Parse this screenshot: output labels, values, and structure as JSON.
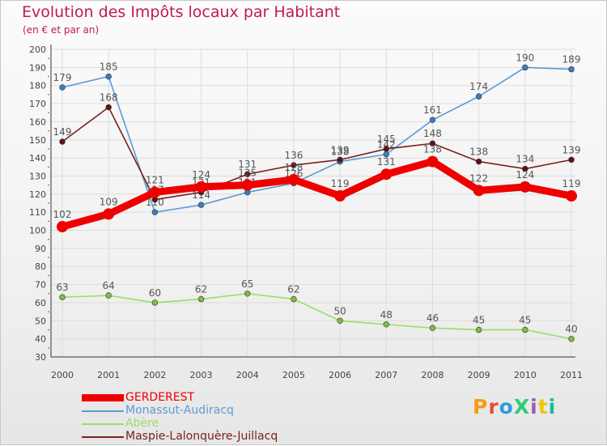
{
  "title": "Evolution des Impôts locaux par Habitant",
  "subtitle": "(en € et par an)",
  "logo": {
    "text": "ProXiti",
    "colors": [
      "#f39c12",
      "#e74c3c",
      "#3498db",
      "#2ecc71",
      "#9b59b6",
      "#f1c40f",
      "#1abc9c"
    ]
  },
  "chart_data": {
    "type": "line",
    "title": "Evolution des Impôts locaux par Habitant",
    "subtitle": "(en € et par an)",
    "xlabel": "",
    "ylabel": "",
    "x": [
      "2000",
      "2001",
      "2002",
      "2003",
      "2004",
      "2005",
      "2006",
      "2007",
      "2008",
      "2009",
      "2010",
      "2011"
    ],
    "ylim": [
      30,
      200
    ],
    "yticks": [
      30,
      40,
      50,
      60,
      70,
      80,
      90,
      100,
      110,
      120,
      130,
      140,
      150,
      160,
      170,
      180,
      190,
      200
    ],
    "grid": true,
    "legend_position": "bottom-left",
    "series": [
      {
        "name": "Monassut-Audiracq",
        "color": "#5b9bd5",
        "marker_color": "#3a7ec0",
        "emphasis": false,
        "values": [
          179,
          185,
          110,
          114,
          121,
          126,
          138,
          142,
          161,
          174,
          190,
          189
        ],
        "labels": [
          "179",
          "185",
          "110",
          "114",
          "121",
          "126",
          "138",
          "142",
          "161",
          "174",
          "190",
          "189"
        ]
      },
      {
        "name": "Maspie-Lalonquère-Juillacq",
        "color": "#7b2020",
        "marker_color": "#5c1414",
        "emphasis": false,
        "values": [
          149,
          168,
          117,
          121,
          131,
          136,
          139,
          145,
          148,
          138,
          134,
          139
        ],
        "labels": [
          "149",
          "168",
          "117",
          "121",
          "131",
          "136",
          "139",
          "145",
          "148",
          "138",
          "134",
          "139"
        ]
      },
      {
        "name": "Abère",
        "color": "#99dd66",
        "marker_color": "#7bc043",
        "emphasis": false,
        "values": [
          63,
          64,
          60,
          62,
          65,
          62,
          50,
          48,
          46,
          45,
          45,
          40
        ],
        "labels": [
          "63",
          "64",
          "60",
          "62",
          "65",
          "62",
          "50",
          "48",
          "46",
          "45",
          "45",
          "40"
        ]
      },
      {
        "name": "GERDEREST",
        "color": "#ee0000",
        "marker_color": "#ee0000",
        "emphasis": true,
        "values": [
          102,
          109,
          121,
          124,
          125,
          128,
          119,
          131,
          138,
          122,
          124,
          119
        ],
        "labels": [
          "102",
          "109",
          "121",
          "124",
          "125",
          "128",
          "119",
          "131",
          "138",
          "122",
          "124",
          "119"
        ]
      }
    ],
    "legend": [
      {
        "name": "GERDEREST",
        "color": "#ee0000",
        "thick": true
      },
      {
        "name": "Monassut-Audiracq",
        "color": "#5b9bd5",
        "thick": false
      },
      {
        "name": "Abère",
        "color": "#99dd66",
        "thick": false
      },
      {
        "name": "Maspie-Lalonquère-Juillacq",
        "color": "#7b2020",
        "thick": false
      }
    ]
  }
}
